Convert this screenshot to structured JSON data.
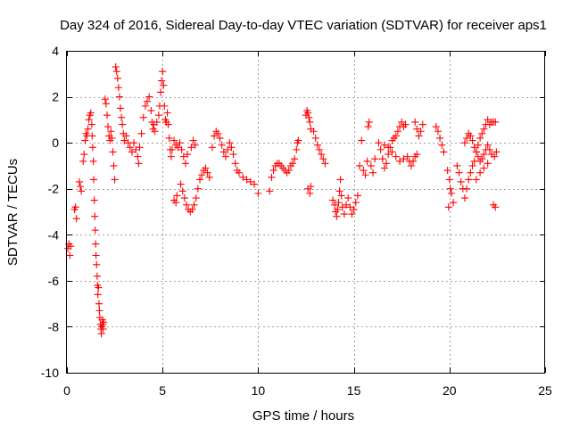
{
  "chart_data": {
    "type": "scatter",
    "title": "Day 324 of 2016, Sidereal Day-to-day VTEC variation (SDTVAR) for receiver aps1",
    "xlabel": "GPS time / hours",
    "ylabel": "SDTVAR / TECUs",
    "xlim": [
      0,
      25
    ],
    "ylim": [
      -10,
      4
    ],
    "xticks": [
      0,
      5,
      10,
      15,
      20,
      25
    ],
    "xtick_labels": [
      "0",
      "5",
      "10",
      "15",
      "20",
      "25"
    ],
    "yticks": [
      4,
      2,
      0,
      -2,
      -4,
      -6,
      -8,
      -10
    ],
    "ytick_labels": [
      "4",
      "2",
      "0",
      "-2",
      "-4",
      "-6",
      "-8",
      "-10"
    ],
    "grid": true,
    "marker": "plus",
    "color": "#ff0000",
    "series": [
      {
        "name": "aps1",
        "points": [
          [
            0.05,
            -4.6
          ],
          [
            0.1,
            -4.4
          ],
          [
            0.15,
            -4.9
          ],
          [
            0.2,
            -4.5
          ],
          [
            0.4,
            -2.9
          ],
          [
            0.45,
            -2.8
          ],
          [
            0.5,
            -3.3
          ],
          [
            0.65,
            -1.7
          ],
          [
            0.7,
            -1.9
          ],
          [
            0.75,
            -2.1
          ],
          [
            0.85,
            -0.8
          ],
          [
            0.9,
            -0.5
          ],
          [
            0.95,
            0.1
          ],
          [
            1.0,
            0.4
          ],
          [
            1.05,
            0.3
          ],
          [
            1.1,
            0.6
          ],
          [
            1.15,
            1.0
          ],
          [
            1.2,
            1.2
          ],
          [
            1.25,
            1.3
          ],
          [
            1.3,
            0.8
          ],
          [
            1.32,
            0.3
          ],
          [
            1.35,
            -0.2
          ],
          [
            1.38,
            -0.8
          ],
          [
            1.4,
            -1.6
          ],
          [
            1.43,
            -2.5
          ],
          [
            1.46,
            -3.2
          ],
          [
            1.48,
            -3.8
          ],
          [
            1.5,
            -4.4
          ],
          [
            1.52,
            -4.9
          ],
          [
            1.55,
            -5.3
          ],
          [
            1.58,
            -5.8
          ],
          [
            1.6,
            -6.2
          ],
          [
            1.62,
            -6.6
          ],
          [
            1.65,
            -6.3
          ],
          [
            1.68,
            -7.0
          ],
          [
            1.7,
            -7.3
          ],
          [
            1.72,
            -7.6
          ],
          [
            1.75,
            -7.9
          ],
          [
            1.78,
            -8.1
          ],
          [
            1.8,
            -8.3
          ],
          [
            1.82,
            -8.0
          ],
          [
            1.85,
            -7.7
          ],
          [
            1.88,
            -7.9
          ],
          [
            1.9,
            -8.1
          ],
          [
            1.92,
            -7.8
          ],
          [
            2.0,
            1.9
          ],
          [
            2.05,
            1.7
          ],
          [
            2.1,
            1.2
          ],
          [
            2.15,
            0.7
          ],
          [
            2.2,
            0.3
          ],
          [
            2.25,
            0.1
          ],
          [
            2.3,
            0.5
          ],
          [
            2.35,
            0.2
          ],
          [
            2.4,
            -0.4
          ],
          [
            2.45,
            -1.0
          ],
          [
            2.5,
            -1.6
          ],
          [
            2.55,
            3.3
          ],
          [
            2.6,
            3.1
          ],
          [
            2.65,
            2.8
          ],
          [
            2.7,
            2.4
          ],
          [
            2.75,
            2.0
          ],
          [
            2.8,
            1.5
          ],
          [
            2.85,
            1.1
          ],
          [
            2.9,
            0.8
          ],
          [
            2.95,
            0.4
          ],
          [
            3.0,
            0.1
          ],
          [
            3.1,
            0.3
          ],
          [
            3.2,
            0.0
          ],
          [
            3.3,
            -0.2
          ],
          [
            3.4,
            -0.4
          ],
          [
            3.5,
            0.0
          ],
          [
            3.6,
            -0.3
          ],
          [
            3.7,
            -0.6
          ],
          [
            3.75,
            -0.9
          ],
          [
            3.8,
            -0.2
          ],
          [
            3.9,
            0.4
          ],
          [
            4.0,
            1.1
          ],
          [
            4.1,
            1.6
          ],
          [
            4.2,
            1.8
          ],
          [
            4.3,
            2.0
          ],
          [
            4.4,
            1.4
          ],
          [
            4.45,
            0.9
          ],
          [
            4.5,
            0.6
          ],
          [
            4.55,
            0.8
          ],
          [
            4.6,
            0.5
          ],
          [
            4.7,
            0.9
          ],
          [
            4.8,
            1.2
          ],
          [
            4.85,
            1.6
          ],
          [
            4.9,
            2.2
          ],
          [
            4.95,
            2.7
          ],
          [
            5.0,
            3.1
          ],
          [
            5.05,
            2.5
          ],
          [
            5.1,
            1.6
          ],
          [
            5.15,
            1.0
          ],
          [
            5.2,
            0.9
          ],
          [
            5.25,
            1.3
          ],
          [
            5.3,
            0.8
          ],
          [
            5.35,
            0.2
          ],
          [
            5.4,
            -0.3
          ],
          [
            5.45,
            -0.6
          ],
          [
            5.5,
            -0.3
          ],
          [
            5.6,
            0.1
          ],
          [
            5.7,
            -0.1
          ],
          [
            5.8,
            -0.2
          ],
          [
            5.9,
            0.0
          ],
          [
            5.6,
            -2.5
          ],
          [
            5.7,
            -2.6
          ],
          [
            5.75,
            -2.3
          ],
          [
            5.95,
            -1.8
          ],
          [
            6.05,
            -2.1
          ],
          [
            6.15,
            -2.4
          ],
          [
            6.25,
            -2.7
          ],
          [
            6.35,
            -2.9
          ],
          [
            6.45,
            -3.0
          ],
          [
            6.55,
            -2.9
          ],
          [
            6.65,
            -2.7
          ],
          [
            6.75,
            -2.4
          ],
          [
            6.85,
            -2.0
          ],
          [
            6.95,
            -1.6
          ],
          [
            7.05,
            -1.4
          ],
          [
            7.15,
            -1.2
          ],
          [
            7.25,
            -1.1
          ],
          [
            7.35,
            -1.3
          ],
          [
            7.45,
            -1.5
          ],
          [
            6.0,
            -0.3
          ],
          [
            6.1,
            -0.6
          ],
          [
            6.2,
            -0.9
          ],
          [
            6.3,
            -0.5
          ],
          [
            6.5,
            -0.2
          ],
          [
            6.6,
            0.1
          ],
          [
            6.7,
            -0.1
          ],
          [
            7.6,
            -0.2
          ],
          [
            7.7,
            0.3
          ],
          [
            7.8,
            0.5
          ],
          [
            7.9,
            0.4
          ],
          [
            8.0,
            0.2
          ],
          [
            8.1,
            -0.1
          ],
          [
            8.2,
            -0.4
          ],
          [
            8.3,
            -0.6
          ],
          [
            8.4,
            -0.3
          ],
          [
            8.5,
            0.0
          ],
          [
            8.6,
            -0.2
          ],
          [
            8.7,
            -0.5
          ],
          [
            8.8,
            -0.9
          ],
          [
            8.9,
            -1.2
          ],
          [
            9.0,
            -1.3
          ],
          [
            9.2,
            -1.5
          ],
          [
            9.4,
            -1.6
          ],
          [
            9.6,
            -1.7
          ],
          [
            9.8,
            -1.8
          ],
          [
            10.0,
            -2.2
          ],
          [
            10.6,
            -2.1
          ],
          [
            10.7,
            -1.5
          ],
          [
            10.8,
            -1.2
          ],
          [
            10.9,
            -1.0
          ],
          [
            11.0,
            -0.9
          ],
          [
            11.1,
            -0.9
          ],
          [
            11.2,
            -1.0
          ],
          [
            11.3,
            -1.1
          ],
          [
            11.4,
            -1.2
          ],
          [
            11.5,
            -1.3
          ],
          [
            11.6,
            -1.2
          ],
          [
            11.7,
            -1.0
          ],
          [
            11.8,
            -0.9
          ],
          [
            11.9,
            -0.7
          ],
          [
            12.0,
            -0.3
          ],
          [
            12.05,
            0.0
          ],
          [
            12.1,
            0.1
          ],
          [
            12.5,
            1.2
          ],
          [
            12.55,
            1.4
          ],
          [
            12.6,
            1.3
          ],
          [
            12.65,
            1.1
          ],
          [
            12.7,
            0.9
          ],
          [
            12.75,
            0.6
          ],
          [
            12.6,
            -2.0
          ],
          [
            12.7,
            -2.2
          ],
          [
            12.75,
            -1.9
          ],
          [
            12.9,
            0.5
          ],
          [
            13.0,
            0.2
          ],
          [
            13.1,
            -0.1
          ],
          [
            13.2,
            -0.3
          ],
          [
            13.3,
            -0.5
          ],
          [
            13.4,
            -0.7
          ],
          [
            13.5,
            -0.9
          ],
          [
            13.9,
            -2.5
          ],
          [
            14.0,
            -2.7
          ],
          [
            14.05,
            -3.0
          ],
          [
            14.1,
            -3.2
          ],
          [
            14.15,
            -2.9
          ],
          [
            14.2,
            -2.6
          ],
          [
            14.25,
            -2.1
          ],
          [
            14.3,
            -1.6
          ],
          [
            14.35,
            -2.3
          ],
          [
            14.4,
            -2.8
          ],
          [
            14.5,
            -3.1
          ],
          [
            14.6,
            -2.7
          ],
          [
            14.7,
            -2.4
          ],
          [
            14.8,
            -2.8
          ],
          [
            14.9,
            -3.1
          ],
          [
            15.0,
            -2.9
          ],
          [
            15.1,
            -2.6
          ],
          [
            15.2,
            -2.3
          ],
          [
            15.3,
            -1.0
          ],
          [
            15.4,
            0.1
          ],
          [
            15.5,
            -1.2
          ],
          [
            15.6,
            -1.4
          ],
          [
            15.7,
            -0.8
          ],
          [
            15.75,
            0.7
          ],
          [
            15.8,
            0.9
          ],
          [
            15.9,
            -1.0
          ],
          [
            16.0,
            -1.3
          ],
          [
            16.1,
            -0.7
          ],
          [
            16.3,
            0.0
          ],
          [
            16.4,
            -0.3
          ],
          [
            16.5,
            -0.7
          ],
          [
            16.6,
            -1.1
          ],
          [
            16.7,
            -0.9
          ],
          [
            16.8,
            -0.5
          ],
          [
            16.9,
            -0.2
          ],
          [
            17.0,
            0.1
          ],
          [
            17.1,
            0.2
          ],
          [
            17.2,
            0.3
          ],
          [
            17.3,
            0.5
          ],
          [
            17.4,
            0.7
          ],
          [
            17.5,
            0.9
          ],
          [
            17.6,
            0.7
          ],
          [
            17.7,
            0.8
          ],
          [
            16.6,
            -0.1
          ],
          [
            16.8,
            -0.2
          ],
          [
            17.0,
            -0.4
          ],
          [
            17.2,
            -0.6
          ],
          [
            17.4,
            -0.8
          ],
          [
            17.6,
            -0.7
          ],
          [
            17.8,
            -0.6
          ],
          [
            17.9,
            -0.8
          ],
          [
            18.0,
            -1.0
          ],
          [
            18.1,
            -0.8
          ],
          [
            18.2,
            -0.6
          ],
          [
            18.3,
            -0.5
          ],
          [
            18.2,
            0.9
          ],
          [
            18.3,
            0.6
          ],
          [
            18.4,
            0.3
          ],
          [
            18.5,
            0.5
          ],
          [
            18.6,
            0.8
          ],
          [
            19.3,
            0.7
          ],
          [
            19.4,
            0.5
          ],
          [
            19.5,
            0.2
          ],
          [
            19.6,
            -0.1
          ],
          [
            19.7,
            -0.4
          ],
          [
            19.9,
            -1.2
          ],
          [
            20.0,
            -1.6
          ],
          [
            20.1,
            -2.2
          ],
          [
            20.2,
            -2.6
          ],
          [
            19.95,
            -2.8
          ],
          [
            20.05,
            -2.0
          ],
          [
            20.4,
            -1.0
          ],
          [
            20.5,
            -1.3
          ],
          [
            20.6,
            -1.7
          ],
          [
            20.7,
            -2.0
          ],
          [
            20.8,
            -2.4
          ],
          [
            20.9,
            -2.0
          ],
          [
            21.0,
            -1.6
          ],
          [
            21.1,
            -1.3
          ],
          [
            21.2,
            -1.0
          ],
          [
            21.3,
            -0.8
          ],
          [
            21.4,
            -0.4
          ],
          [
            21.5,
            -0.1
          ],
          [
            21.6,
            0.2
          ],
          [
            21.7,
            0.4
          ],
          [
            21.8,
            0.6
          ],
          [
            21.9,
            0.8
          ],
          [
            22.0,
            1.0
          ],
          [
            22.1,
            0.8
          ],
          [
            22.2,
            0.9
          ],
          [
            22.3,
            0.9
          ],
          [
            22.4,
            0.9
          ],
          [
            20.8,
            0.0
          ],
          [
            20.9,
            0.2
          ],
          [
            21.0,
            0.4
          ],
          [
            21.1,
            0.3
          ],
          [
            21.2,
            0.1
          ],
          [
            21.3,
            -0.2
          ],
          [
            21.4,
            -0.4
          ],
          [
            21.5,
            -0.6
          ],
          [
            21.6,
            -0.8
          ],
          [
            21.7,
            -0.7
          ],
          [
            21.8,
            -0.5
          ],
          [
            21.9,
            -0.3
          ],
          [
            22.0,
            -0.1
          ],
          [
            22.1,
            -0.3
          ],
          [
            22.2,
            -0.5
          ],
          [
            21.4,
            -1.6
          ],
          [
            21.6,
            -1.3
          ],
          [
            21.8,
            -1.1
          ],
          [
            22.0,
            -0.9
          ],
          [
            22.3,
            -2.7
          ],
          [
            22.4,
            -2.8
          ],
          [
            22.35,
            -0.6
          ],
          [
            22.45,
            -0.4
          ]
        ]
      }
    ]
  }
}
